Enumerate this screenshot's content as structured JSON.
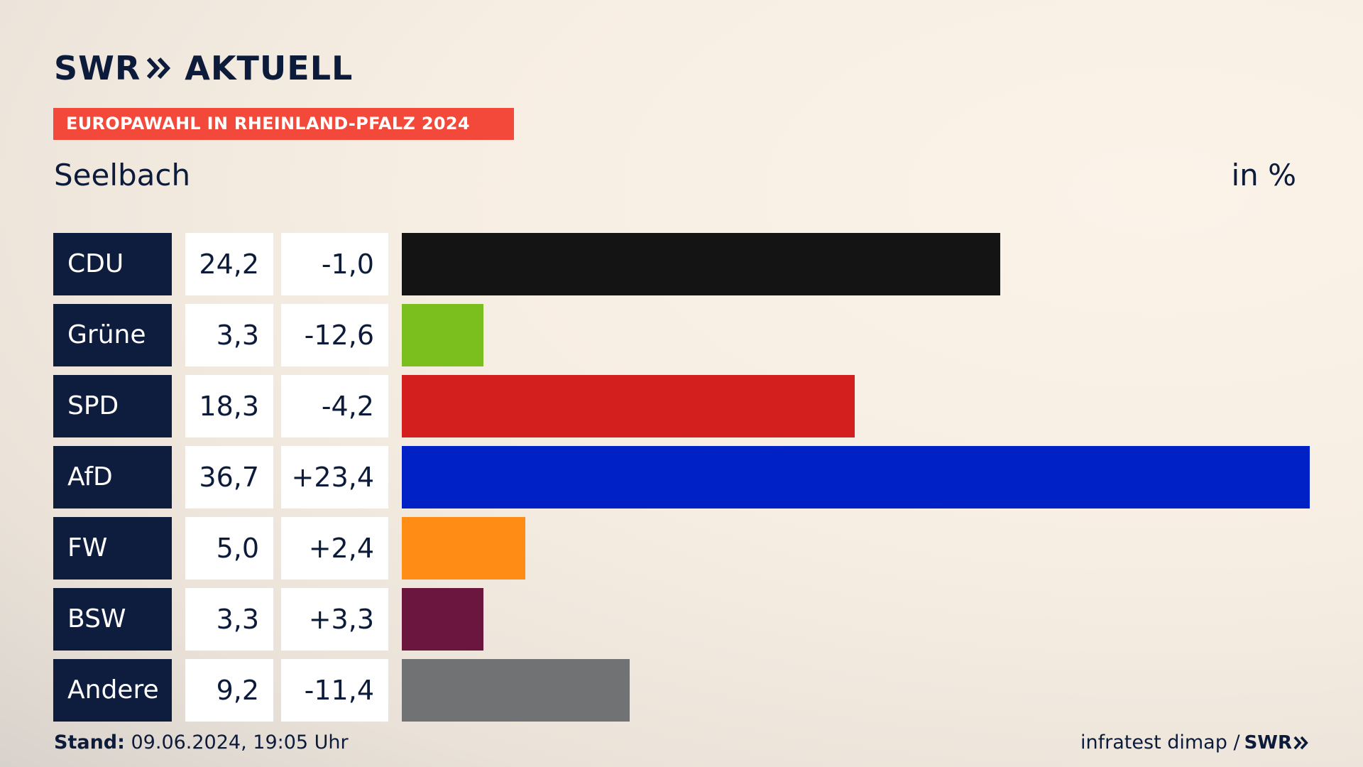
{
  "header": {
    "logo_text_left": "SWR",
    "logo_text_right": "AKTUELL",
    "banner": "EUROPAWAHL IN RHEINLAND-PFALZ 2024",
    "place": "Seelbach",
    "unit": "in %"
  },
  "chart_data": {
    "type": "bar",
    "orientation": "horizontal",
    "categories": [
      "CDU",
      "Grüne",
      "SPD",
      "AfD",
      "FW",
      "BSW",
      "Andere"
    ],
    "values": [
      24.2,
      3.3,
      18.3,
      36.7,
      5.0,
      3.3,
      9.2
    ],
    "value_labels": [
      "24,2",
      "3,3",
      "18,3",
      "36,7",
      "5,0",
      "3,3",
      "9,2"
    ],
    "diff_labels": [
      "-1,0",
      "-12,6",
      "-4,2",
      "+23,4",
      "+2,4",
      "+3,3",
      "-11,4"
    ],
    "colors": [
      "#141414",
      "#7bbf1e",
      "#d41f1f",
      "#0021c6",
      "#ff8c14",
      "#6b163f",
      "#717274"
    ],
    "xlim": [
      0,
      36.7
    ]
  },
  "footer": {
    "stand_label": "Stand:",
    "stand_value": " 09.06.2024, 19:05 Uhr",
    "source": "infratest dimap /",
    "source_logo": "SWR"
  }
}
